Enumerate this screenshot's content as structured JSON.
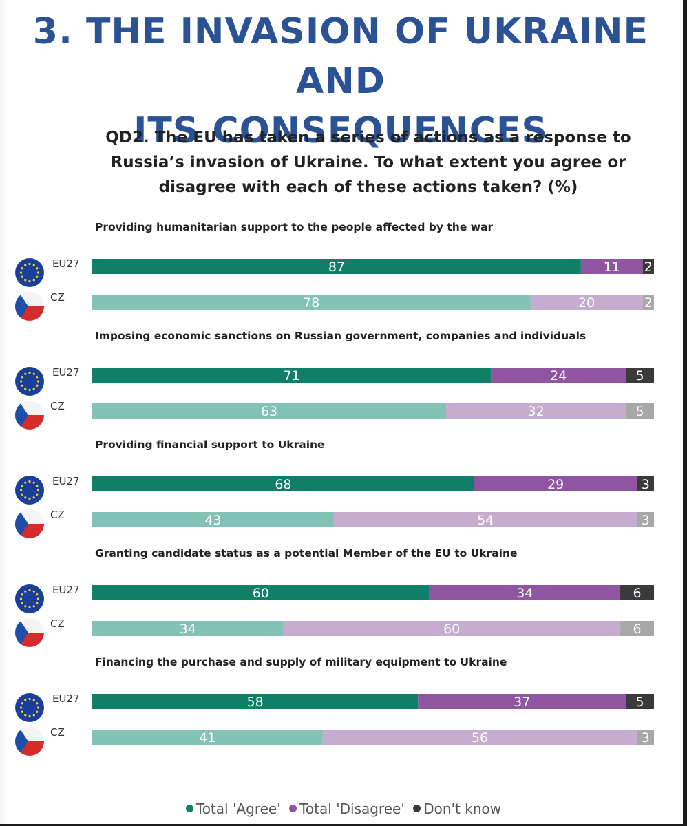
{
  "heading": {
    "line1": "3. THE INVASION OF UKRAINE AND",
    "line2": "ITS CONSEQUENCES"
  },
  "question": {
    "line1": "QD2. The EU has taken a series of actions as a response to",
    "line2": "Russia’s invasion of Ukraine. To what extent you agree or",
    "line3": "disagree with each of these actions taken? (%)"
  },
  "colors": {
    "eu_agree": "#0f7f68",
    "eu_disagree": "#8f55a0",
    "eu_dontknow": "#3a3a3c",
    "cz_agree": "#83c2b6",
    "cz_disagree": "#c6acce",
    "cz_dontknow": "#a8a8a8",
    "legend_agree": "#0f7f68",
    "legend_disagree": "#8f55a0",
    "legend_dontknow": "#3a3a3c",
    "eu_flag": "#1a3f9a",
    "eu_stars": "#f4cf2a",
    "cz_red": "#d62b2b",
    "cz_white": "#f4f4f4",
    "cz_blue": "#1e4fa8"
  },
  "icons": {
    "eu": "eu-flag-icon",
    "cz": "czech-flag-icon"
  },
  "chart_data": {
    "type": "bar",
    "orientation": "horizontal",
    "stacked": true,
    "normalized_percent": true,
    "xlim": [
      0,
      100
    ],
    "segments": [
      "Total 'Agree'",
      "Total 'Disagree'",
      "Don't know"
    ],
    "items": [
      {
        "title": "Providing humanitarian support to the people affected by the war",
        "rows": [
          {
            "label": "EU27",
            "values": [
              87,
              11,
              2
            ]
          },
          {
            "label": "CZ",
            "values": [
              78,
              20,
              2
            ]
          }
        ]
      },
      {
        "title": "Imposing economic sanctions on Russian government, companies and individuals",
        "rows": [
          {
            "label": "EU27",
            "values": [
              71,
              24,
              5
            ]
          },
          {
            "label": "CZ",
            "values": [
              63,
              32,
              5
            ]
          }
        ]
      },
      {
        "title": "Providing financial support to Ukraine",
        "rows": [
          {
            "label": "EU27",
            "values": [
              68,
              29,
              3
            ]
          },
          {
            "label": "CZ",
            "values": [
              43,
              54,
              3
            ]
          }
        ]
      },
      {
        "title": "Granting candidate status as a potential Member of the EU to Ukraine",
        "rows": [
          {
            "label": "EU27",
            "values": [
              60,
              34,
              6
            ]
          },
          {
            "label": "CZ",
            "values": [
              34,
              60,
              6
            ]
          }
        ]
      },
      {
        "title": "Financing the purchase and supply of military equipment to Ukraine",
        "rows": [
          {
            "label": "EU27",
            "values": [
              58,
              37,
              5
            ]
          },
          {
            "label": "CZ",
            "values": [
              41,
              56,
              3
            ]
          }
        ]
      }
    ],
    "legend": {
      "position": "bottom-center",
      "entries": [
        "Total 'Agree'",
        "Total 'Disagree'",
        "Don't know"
      ]
    }
  }
}
